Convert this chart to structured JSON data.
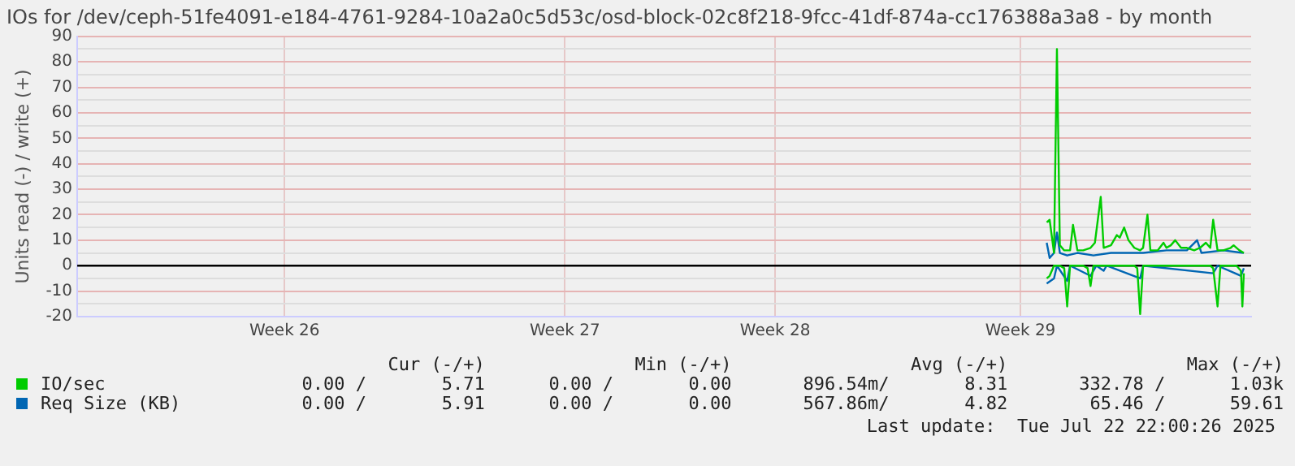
{
  "chart_data": {
    "type": "line",
    "title": "IOs for /dev/ceph-51fe4091-e184-4761-9284-10a2a0c5d53c/osd-block-02c8f218-9fcc-41df-874a-cc176388a3a8 - by month",
    "ylabel": "Units read (-) / write (+)",
    "xlim": [
      "2025-06-19T15:00",
      "2025-07-23T03:00"
    ],
    "xticks": [
      {
        "value": "2025-06-25T13:00",
        "label": "Week 26"
      },
      {
        "value": "2025-07-03T13:00",
        "label": "Week 27"
      },
      {
        "value": "2025-07-09T13:00",
        "label": "Week 28"
      },
      {
        "value": "2025-07-16T13:00",
        "label": "Week 29"
      }
    ],
    "ylim": [
      -20,
      90
    ],
    "yticks": [
      -20,
      {
        "value": -15,
        "label": null
      },
      -10,
      {
        "value": -5,
        "label": null
      },
      0,
      {
        "value": 5,
        "label": null
      },
      10,
      {
        "value": 15,
        "label": null
      },
      20,
      {
        "value": 25,
        "label": null
      },
      30,
      {
        "value": 35,
        "label": null
      },
      40,
      {
        "value": 45,
        "label": null
      },
      50,
      {
        "value": 55,
        "label": null
      },
      60,
      {
        "value": 65,
        "label": null
      },
      70,
      {
        "value": 75,
        "label": null
      },
      80,
      {
        "value": 85,
        "label": null
      },
      90
    ],
    "grid": true,
    "legend": "bottom",
    "marker": "none",
    "line_style": "solid",
    "series": [
      {
        "name": "IO/sec",
        "color": "#00cc00",
        "x": [
          "2025-07-17T07:00",
          "2025-07-17T09:00",
          "2025-07-17T12:00",
          "2025-07-17T14:00",
          "2025-07-17T16:00",
          "2025-07-17T19:00",
          "2025-07-17T23:00",
          "2025-07-18T01:00",
          "2025-07-18T04:00",
          "2025-07-18T08:00",
          "2025-07-18T13:00",
          "2025-07-18T16:00",
          "2025-07-18T20:00",
          "2025-07-18T22:00",
          "2025-07-19T03:00",
          "2025-07-19T07:00",
          "2025-07-19T09:00",
          "2025-07-19T12:00",
          "2025-07-19T15:00",
          "2025-07-19T19:00",
          "2025-07-19T23:00",
          "2025-07-20T01:00",
          "2025-07-20T04:00",
          "2025-07-20T06:00",
          "2025-07-20T11:00",
          "2025-07-20T15:00",
          "2025-07-20T17:00",
          "2025-07-20T20:00",
          "2025-07-20T23:00",
          "2025-07-21T03:00",
          "2025-07-21T07:00",
          "2025-07-21T12:00",
          "2025-07-21T16:00",
          "2025-07-21T20:00",
          "2025-07-21T23:00",
          "2025-07-22T01:00",
          "2025-07-22T04:00",
          "2025-07-22T08:00",
          "2025-07-22T13:00",
          "2025-07-22T15:00",
          "2025-07-22T19:00",
          "2025-07-22T22:00"
        ],
        "values": [
          17,
          18,
          5,
          85,
          8,
          6,
          6,
          16,
          6,
          6,
          7,
          9,
          27,
          7,
          8,
          12,
          11,
          15,
          10,
          7,
          6,
          7,
          20,
          6,
          6,
          9,
          7,
          8,
          10,
          7,
          7,
          6,
          7,
          9,
          7,
          18,
          6,
          6,
          7,
          8,
          6,
          5
        ]
      },
      {
        "color": "#00cc00",
        "x": [
          "2025-07-17T07:00",
          "2025-07-17T09:00",
          "2025-07-17T12:00",
          "2025-07-17T16:00",
          "2025-07-17T19:00",
          "2025-07-17T21:00",
          "2025-07-17T23:00",
          "2025-07-18T08:00",
          "2025-07-18T11:00",
          "2025-07-18T13:00",
          "2025-07-18T15:00",
          "2025-07-19T19:00",
          "2025-07-19T21:00",
          "2025-07-19T23:00",
          "2025-07-20T01:00",
          "2025-07-21T23:00",
          "2025-07-22T01:00",
          "2025-07-22T04:00",
          "2025-07-22T06:00",
          "2025-07-22T17:00",
          "2025-07-22T20:00",
          "2025-07-22T21:00",
          "2025-07-22T22:00"
        ],
        "values": [
          -5,
          -4,
          0,
          0,
          -1,
          -16,
          0,
          0,
          -1,
          -8,
          0,
          0,
          -1,
          -19,
          0,
          0,
          -1,
          -16,
          0,
          0,
          -2,
          -16,
          -3
        ]
      },
      {
        "name": "Req Size (KB)",
        "color": "#0066b3",
        "x": [
          "2025-07-17T07:00",
          "2025-07-17T09:00",
          "2025-07-17T12:00",
          "2025-07-17T14:00",
          "2025-07-17T16:00",
          "2025-07-17T21:00",
          "2025-07-18T04:00",
          "2025-07-18T15:00",
          "2025-07-19T03:00",
          "2025-07-19T15:00",
          "2025-07-20T01:00",
          "2025-07-20T17:00",
          "2025-07-21T07:00",
          "2025-07-21T14:00",
          "2025-07-21T17:00",
          "2025-07-22T08:00",
          "2025-07-22T22:00"
        ],
        "values": [
          9,
          3,
          5,
          13,
          5,
          4,
          5,
          4,
          5,
          5,
          5,
          6,
          6,
          10,
          5,
          6,
          5
        ]
      },
      {
        "color": "#0066b3",
        "x": [
          "2025-07-17T07:00",
          "2025-07-17T12:00",
          "2025-07-17T14:00",
          "2025-07-17T21:00",
          "2025-07-17T23:00",
          "2025-07-18T13:00",
          "2025-07-18T17:00",
          "2025-07-18T22:00",
          "2025-07-19T00:00",
          "2025-07-19T23:00",
          "2025-07-20T01:00",
          "2025-07-22T01:00",
          "2025-07-22T04:00",
          "2025-07-22T20:00",
          "2025-07-22T22:00"
        ],
        "values": [
          -7,
          -5,
          0,
          -6,
          0,
          -4,
          0,
          -2,
          0,
          -5,
          0,
          -3,
          0,
          -4,
          -1
        ]
      }
    ],
    "ref_lines": [
      {
        "axis": "y",
        "value": 0,
        "color": "#000000"
      }
    ],
    "annotations": [
      "Cur (-/+)",
      "Min (-/+)",
      "Avg (-/+)",
      "Max (-/+)",
      "0.00 /       5.71",
      "0.00 /       0.00",
      "896.54m/       8.31",
      "332.78 /      1.03k",
      "0.00 /       5.91",
      "0.00 /       0.00",
      "567.86m/       4.82",
      "65.46 /      59.61",
      "Last update:  Tue Jul 22 22:00:26 2025"
    ]
  }
}
